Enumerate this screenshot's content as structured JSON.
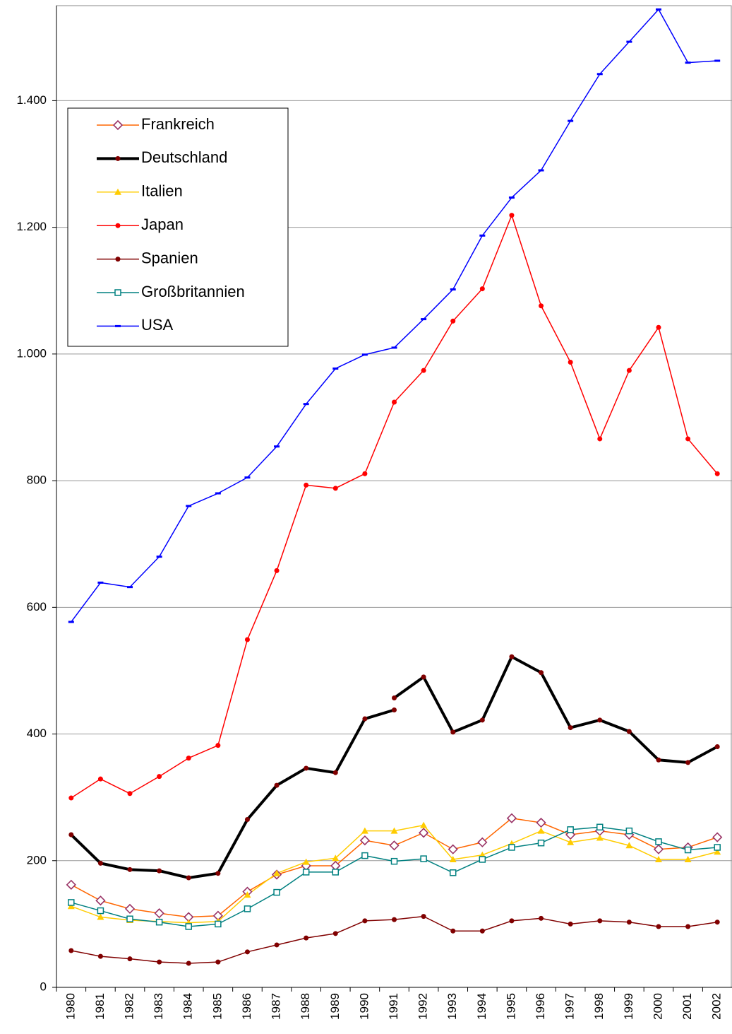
{
  "chart_data": {
    "type": "line",
    "categories": [
      "1980",
      "1981",
      "1982",
      "1983",
      "1984",
      "1985",
      "1986",
      "1987",
      "1988",
      "1989",
      "1990",
      "1991",
      "1992",
      "1993",
      "1994",
      "1995",
      "1996",
      "1997",
      "1998",
      "1999",
      "2000",
      "2001",
      "2002"
    ],
    "ylim": [
      0,
      1550
    ],
    "yticks": [
      0,
      200,
      400,
      600,
      800,
      {
        "value": 1000,
        "label": "1.000"
      },
      {
        "value": 1200,
        "label": "1.200"
      },
      {
        "value": 1400,
        "label": "1.400"
      }
    ],
    "grid": true,
    "legend": "upper left",
    "series": [
      {
        "name": "Frankreich",
        "color": "#ff6600",
        "marker": "diamond",
        "marker_color": "#993366",
        "values": [
          162,
          137,
          124,
          117,
          111,
          113,
          151,
          178,
          192,
          192,
          232,
          224,
          244,
          218,
          229,
          267,
          260,
          241,
          247,
          241,
          218,
          221,
          237
        ]
      },
      {
        "name": "Deutschland",
        "color": "#000000",
        "marker": "dot",
        "marker_color": "#800000",
        "width": 4,
        "values": [
          241,
          196,
          186,
          184,
          173,
          180,
          265,
          319,
          346,
          339,
          424,
          438,
          null,
          null,
          null,
          null,
          null,
          null,
          null,
          null,
          null,
          null,
          null
        ]
      },
      {
        "name": "Italien",
        "color": "#ffcc00",
        "marker": "triangle",
        "marker_color": "#ffcc00",
        "values": [
          128,
          111,
          106,
          104,
          102,
          104,
          146,
          180,
          198,
          204,
          247,
          247,
          256,
          202,
          209,
          227,
          247,
          229,
          236,
          224,
          202,
          202,
          214
        ]
      },
      {
        "name": "Japan",
        "color": "#ff0000",
        "marker": "dot",
        "marker_color": "#ff0000",
        "values": [
          299,
          329,
          306,
          333,
          362,
          382,
          549,
          658,
          793,
          788,
          811,
          924,
          974,
          1052,
          1103,
          1219,
          1076,
          987,
          866,
          974,
          1042,
          866,
          811
        ]
      },
      {
        "name": "Spanien",
        "color": "#800000",
        "marker": "dot",
        "marker_color": "#800000",
        "values": [
          58,
          49,
          45,
          40,
          38,
          40,
          56,
          67,
          78,
          85,
          105,
          107,
          112,
          89,
          89,
          105,
          109,
          100,
          105,
          103,
          96,
          96,
          103
        ]
      },
      {
        "name": "Großbritannien",
        "color": "#008080",
        "marker": "square",
        "marker_color": "#008080",
        "values": [
          134,
          121,
          108,
          103,
          96,
          100,
          124,
          150,
          182,
          182,
          208,
          199,
          203,
          181,
          202,
          221,
          228,
          249,
          253,
          247,
          230,
          217,
          221
        ]
      },
      {
        "name": "USA",
        "color": "#0000ff",
        "marker": "dash",
        "marker_color": "#0000ff",
        "values": [
          577,
          639,
          632,
          680,
          760,
          780,
          805,
          854,
          921,
          977,
          999,
          1010,
          1055,
          1102,
          1187,
          1247,
          1290,
          1368,
          1442,
          1493,
          1544,
          1460,
          1463
        ]
      },
      {
        "color": "#000000",
        "marker": "dot",
        "marker_color": "#800000",
        "width": 4,
        "values": [
          null,
          null,
          null,
          null,
          null,
          null,
          null,
          null,
          null,
          null,
          null,
          457,
          490,
          403,
          422,
          522,
          497,
          410,
          422,
          404,
          359,
          355,
          380
        ]
      }
    ]
  }
}
